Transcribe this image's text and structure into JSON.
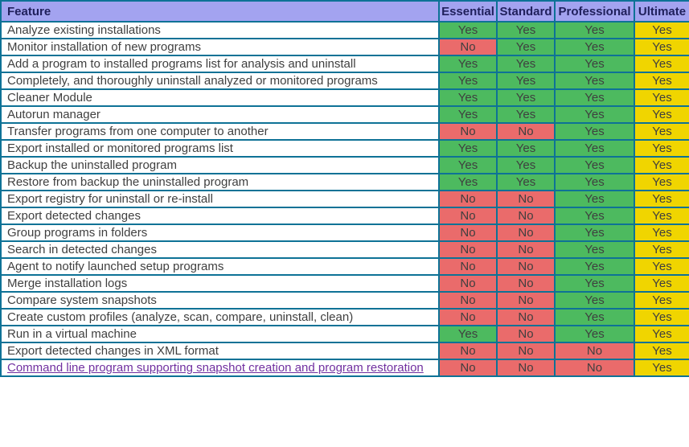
{
  "table": {
    "columns": [
      "Feature",
      "Essential",
      "Standard",
      "Professional",
      "Ultimate"
    ],
    "rows": [
      {
        "feature": "Analyze existing installations",
        "values": [
          "Yes",
          "Yes",
          "Yes",
          "Yes"
        ]
      },
      {
        "feature": "Monitor installation of new programs",
        "values": [
          "No",
          "Yes",
          "Yes",
          "Yes"
        ]
      },
      {
        "feature": "Add a program to installed programs list for analysis and uninstall",
        "values": [
          "Yes",
          "Yes",
          "Yes",
          "Yes"
        ]
      },
      {
        "feature": "Completely, and thoroughly uninstall analyzed or monitored programs",
        "values": [
          "Yes",
          "Yes",
          "Yes",
          "Yes"
        ]
      },
      {
        "feature": "Cleaner Module",
        "values": [
          "Yes",
          "Yes",
          "Yes",
          "Yes"
        ]
      },
      {
        "feature": "Autorun manager",
        "values": [
          "Yes",
          "Yes",
          "Yes",
          "Yes"
        ]
      },
      {
        "feature": "Transfer programs from one computer to another",
        "values": [
          "No",
          "No",
          "Yes",
          "Yes"
        ]
      },
      {
        "feature": "Export installed or monitored programs list",
        "values": [
          "Yes",
          "Yes",
          "Yes",
          "Yes"
        ]
      },
      {
        "feature": "Backup the uninstalled program",
        "values": [
          "Yes",
          "Yes",
          "Yes",
          "Yes"
        ]
      },
      {
        "feature": "Restore from backup the uninstalled program",
        "values": [
          "Yes",
          "Yes",
          "Yes",
          "Yes"
        ]
      },
      {
        "feature": "Export registry for uninstall or re-install",
        "values": [
          "No",
          "No",
          "Yes",
          "Yes"
        ]
      },
      {
        "feature": "Export detected changes",
        "values": [
          "No",
          "No",
          "Yes",
          "Yes"
        ]
      },
      {
        "feature": "Group programs in folders",
        "values": [
          "No",
          "No",
          "Yes",
          "Yes"
        ]
      },
      {
        "feature": "Search in detected changes",
        "values": [
          "No",
          "No",
          "Yes",
          "Yes"
        ]
      },
      {
        "feature": "Agent to notify launched setup programs",
        "values": [
          "No",
          "No",
          "Yes",
          "Yes"
        ]
      },
      {
        "feature": "Merge installation logs",
        "values": [
          "No",
          "No",
          "Yes",
          "Yes"
        ]
      },
      {
        "feature": "Compare system snapshots",
        "values": [
          "No",
          "No",
          "Yes",
          "Yes"
        ]
      },
      {
        "feature": "Create custom profiles (analyze, scan, compare, uninstall, clean)",
        "values": [
          "No",
          "No",
          "Yes",
          "Yes"
        ]
      },
      {
        "feature": "Run in a virtual machine",
        "values": [
          "Yes",
          "No",
          "Yes",
          "Yes"
        ]
      },
      {
        "feature": "Export detected changes in XML format",
        "values": [
          "No",
          "No",
          "No",
          "Yes"
        ]
      },
      {
        "feature": "Command line program supporting snapshot creation and program restoration",
        "is_link": true,
        "values": [
          "No",
          "No",
          "No",
          "Yes"
        ]
      }
    ]
  },
  "colors": {
    "header_bg": "#a3a3f0",
    "header_text": "#20205c",
    "yes_green": "#4dba5f",
    "no_red": "#ea6b6b",
    "ultimate_yellow": "#f0d500",
    "border": "#0e7296",
    "feature_text": "#3f3f3f",
    "link_purple": "#7030a0",
    "row_bg": "#ffffff"
  }
}
